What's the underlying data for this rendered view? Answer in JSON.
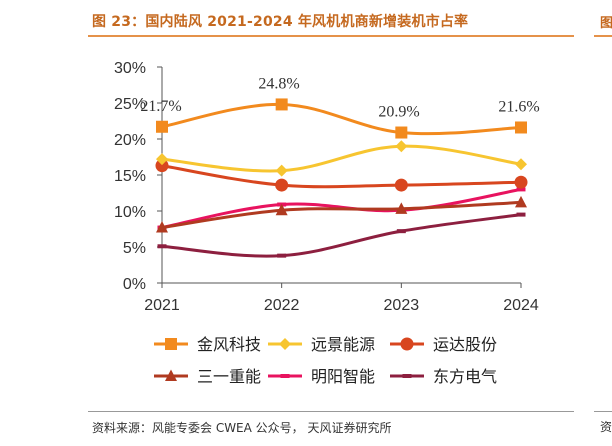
{
  "figure": {
    "title": "图 23：国内陆风 2021-2024 年风机机商新增装机市占率",
    "source": "资料来源：风能专委会 CWEA 公众号， 天风证券研究所",
    "edge_title_char": "图",
    "edge_source_char": "资"
  },
  "chart_data": {
    "type": "line",
    "x": [
      "2021",
      "2022",
      "2023",
      "2024"
    ],
    "ylim": [
      0,
      30
    ],
    "yticks": [
      "0%",
      "5%",
      "10%",
      "15%",
      "20%",
      "25%",
      "30%"
    ],
    "yticks_values": [
      0,
      5,
      10,
      15,
      20,
      25,
      30
    ],
    "grid": false,
    "legend_position": "bottom",
    "series": [
      {
        "name": "金风科技",
        "values": [
          21.7,
          24.8,
          20.9,
          21.6
        ],
        "color": "#f28a1e",
        "marker": "square",
        "labels": [
          "21.7%",
          "24.8%",
          "20.9%",
          "21.6%"
        ]
      },
      {
        "name": "远景能源",
        "values": [
          17.2,
          15.6,
          19.0,
          16.5
        ],
        "color": "#f7c530",
        "marker": "diamond"
      },
      {
        "name": "运达股份",
        "values": [
          16.3,
          13.6,
          13.6,
          14.0
        ],
        "color": "#d8461f",
        "marker": "circle"
      },
      {
        "name": "三一重能",
        "values": [
          7.7,
          10.1,
          10.3,
          11.2
        ],
        "color": "#b03a20",
        "marker": "triangle"
      },
      {
        "name": "明阳智能",
        "values": [
          7.7,
          10.9,
          10.1,
          13.0
        ],
        "color": "#e8135f",
        "marker": "dash"
      },
      {
        "name": "东方电气",
        "values": [
          5.1,
          3.8,
          7.2,
          9.5
        ],
        "color": "#8d1f3f",
        "marker": "dash"
      }
    ]
  }
}
